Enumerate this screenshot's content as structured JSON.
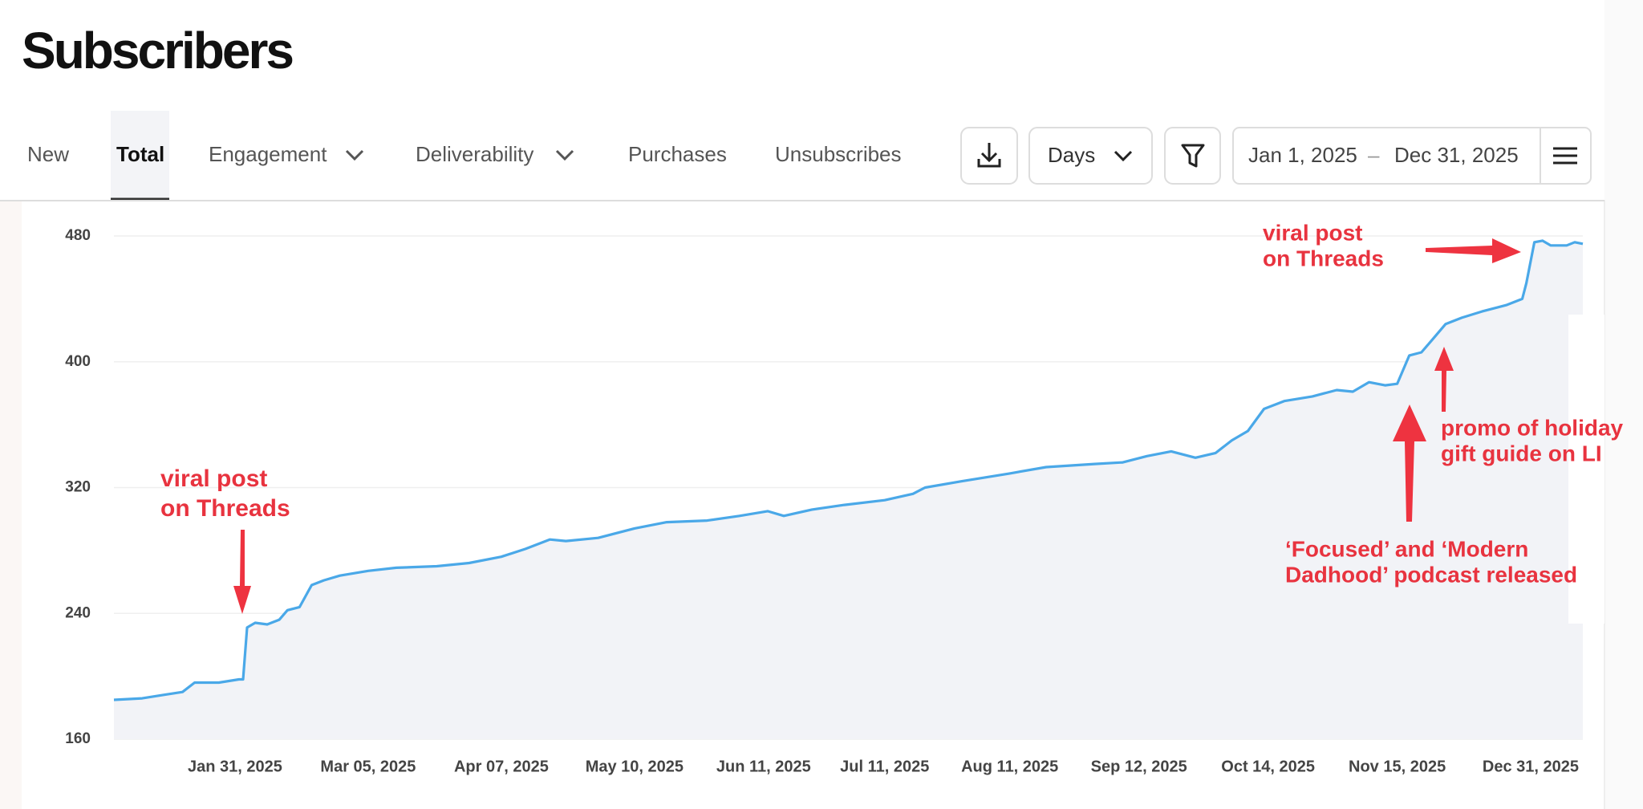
{
  "header": {
    "title": "Subscribers"
  },
  "tabs": [
    {
      "label": "New"
    },
    {
      "label": "Total",
      "active": true
    },
    {
      "label": "Engagement"
    },
    {
      "label": "Deliverability"
    },
    {
      "label": "Purchases"
    },
    {
      "label": "Unsubscribes"
    }
  ],
  "controls": {
    "interval": "Days",
    "date_from": "Jan 1, 2025",
    "date_separator": "–",
    "date_to": "Dec 31, 2025"
  },
  "chart_data": {
    "type": "area-line",
    "color": "#4aa8e8",
    "fill": "#f2f3f7",
    "x": [
      "2025-01-01",
      "2025-01-08",
      "2025-01-13",
      "2025-01-18",
      "2025-01-21",
      "2025-01-27",
      "2025-02-01",
      "2025-02-02",
      "2025-02-03",
      "2025-02-05",
      "2025-02-08",
      "2025-02-11",
      "2025-02-13",
      "2025-02-16",
      "2025-02-19",
      "2025-02-22",
      "2025-02-26",
      "2025-03-05",
      "2025-03-12",
      "2025-03-22",
      "2025-03-30",
      "2025-04-07",
      "2025-04-13",
      "2025-04-19",
      "2025-04-23",
      "2025-05-01",
      "2025-05-10",
      "2025-05-18",
      "2025-05-28",
      "2025-06-05",
      "2025-06-12",
      "2025-06-16",
      "2025-06-23",
      "2025-07-01",
      "2025-07-11",
      "2025-07-18",
      "2025-07-21",
      "2025-07-30",
      "2025-08-11",
      "2025-08-20",
      "2025-09-01",
      "2025-09-08",
      "2025-09-14",
      "2025-09-20",
      "2025-09-26",
      "2025-10-01",
      "2025-10-05",
      "2025-10-09",
      "2025-10-13",
      "2025-10-18",
      "2025-10-25",
      "2025-10-31",
      "2025-11-04",
      "2025-11-08",
      "2025-11-12",
      "2025-11-15",
      "2025-11-18",
      "2025-11-21",
      "2025-11-24",
      "2025-11-27",
      "2025-12-01",
      "2025-12-06",
      "2025-12-12",
      "2025-12-16",
      "2025-12-17",
      "2025-12-19",
      "2025-12-21",
      "2025-12-23",
      "2025-12-27",
      "2025-12-29",
      "2025-12-31"
    ],
    "values": [
      185,
      186,
      188,
      190,
      196,
      196,
      198,
      198,
      231,
      234,
      233,
      236,
      242,
      244,
      258,
      261,
      264,
      267,
      269,
      270,
      272,
      276,
      281,
      287,
      286,
      288,
      294,
      298,
      299,
      302,
      305,
      302,
      306,
      309,
      312,
      316,
      320,
      324,
      329,
      333,
      335,
      336,
      340,
      343,
      339,
      342,
      350,
      356,
      370,
      375,
      378,
      382,
      381,
      387,
      385,
      386,
      404,
      406,
      415,
      424,
      428,
      432,
      436,
      440,
      450,
      476,
      477,
      474,
      474,
      476,
      475
    ],
    "xlim": [
      "2025-01-01",
      "2025-12-31"
    ],
    "xticks": [
      {
        "value": "2025-01-31",
        "label": "Jan 31, 2025"
      },
      {
        "value": "2025-03-05",
        "label": "Mar 05, 2025"
      },
      {
        "value": "2025-04-07",
        "label": "Apr 07, 2025"
      },
      {
        "value": "2025-05-10",
        "label": "May 10, 2025"
      },
      {
        "value": "2025-06-11",
        "label": "Jun 11, 2025"
      },
      {
        "value": "2025-07-11",
        "label": "Jul 11, 2025"
      },
      {
        "value": "2025-08-11",
        "label": "Aug 11, 2025"
      },
      {
        "value": "2025-09-12",
        "label": "Sep 12, 2025"
      },
      {
        "value": "2025-10-14",
        "label": "Oct 14, 2025"
      },
      {
        "value": "2025-11-15",
        "label": "Nov 15, 2025"
      },
      {
        "value": "2025-12-31",
        "label": "Dec 31, 2025"
      }
    ],
    "ylim": [
      160,
      480
    ],
    "yticks": [
      160,
      240,
      320,
      400,
      480
    ],
    "grid": true,
    "annotations": [
      {
        "lines": [
          "viral post",
          "on Threads"
        ]
      },
      {
        "lines": [
          "viral post",
          "on Threads"
        ]
      },
      {
        "lines": [
          "promo of holiday",
          "gift guide on LI"
        ]
      },
      {
        "lines": [
          "‘Focused’ and ‘Modern",
          "Dadhood’ podcast released"
        ]
      }
    ]
  }
}
